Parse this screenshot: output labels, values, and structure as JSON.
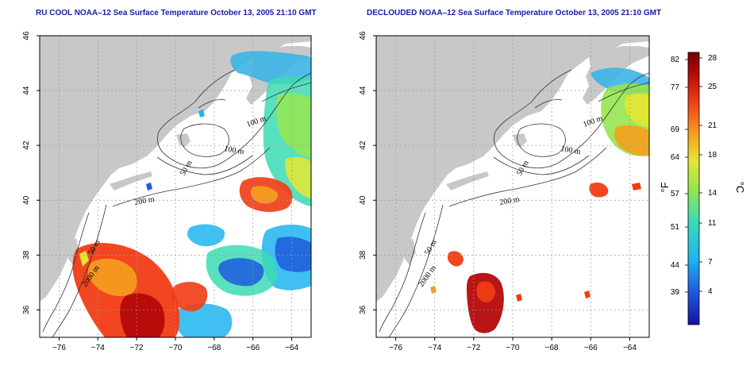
{
  "titles": {
    "left": "RU COOL NOAA–12 Sea Surface Temperature October 13, 2005 21:10 GMT",
    "right": "DECLOUDED NOAA–12 Sea Surface Temperature October 13, 2005 21:10 GMT"
  },
  "axes": {
    "x_ticks": [
      "−76",
      "−74",
      "−72",
      "−70",
      "−68",
      "−66",
      "−64"
    ],
    "y_ticks": [
      "46",
      "44",
      "42",
      "40",
      "38",
      "36"
    ],
    "x_values": [
      -76,
      -74,
      -72,
      -70,
      -68,
      -66,
      -64
    ],
    "y_values": [
      46,
      44,
      42,
      40,
      38,
      36
    ],
    "lon_range": [
      -77,
      -63
    ],
    "lat_range": [
      35,
      46
    ]
  },
  "contour_labels": {
    "left": [
      "100 m",
      "100 m",
      "50 m",
      "200 m",
      "50 m",
      "2000 m"
    ],
    "right": [
      "100 m",
      "100 m",
      "50 m",
      "200 m",
      "50 m",
      "2000 m"
    ]
  },
  "colorbar": {
    "fahrenheit_ticks": [
      "82",
      "77",
      "69",
      "64",
      "57",
      "51",
      "44",
      "39"
    ],
    "celsius_ticks": [
      "28",
      "25",
      "21",
      "18",
      "14",
      "11",
      "7",
      "4"
    ],
    "unit_f": "°F",
    "unit_c": "°C",
    "colors": [
      "#1414a0",
      "#1e5adc",
      "#1eb4f0",
      "#3cdcb4",
      "#96e650",
      "#e6e632",
      "#f5a01e",
      "#f03c14",
      "#b40a0a",
      "#780000"
    ]
  },
  "colors": {
    "land": "#c8c8c8",
    "ocean": "#ffffff",
    "grid": "#9a9a9a",
    "title": "#1a1aa6"
  }
}
